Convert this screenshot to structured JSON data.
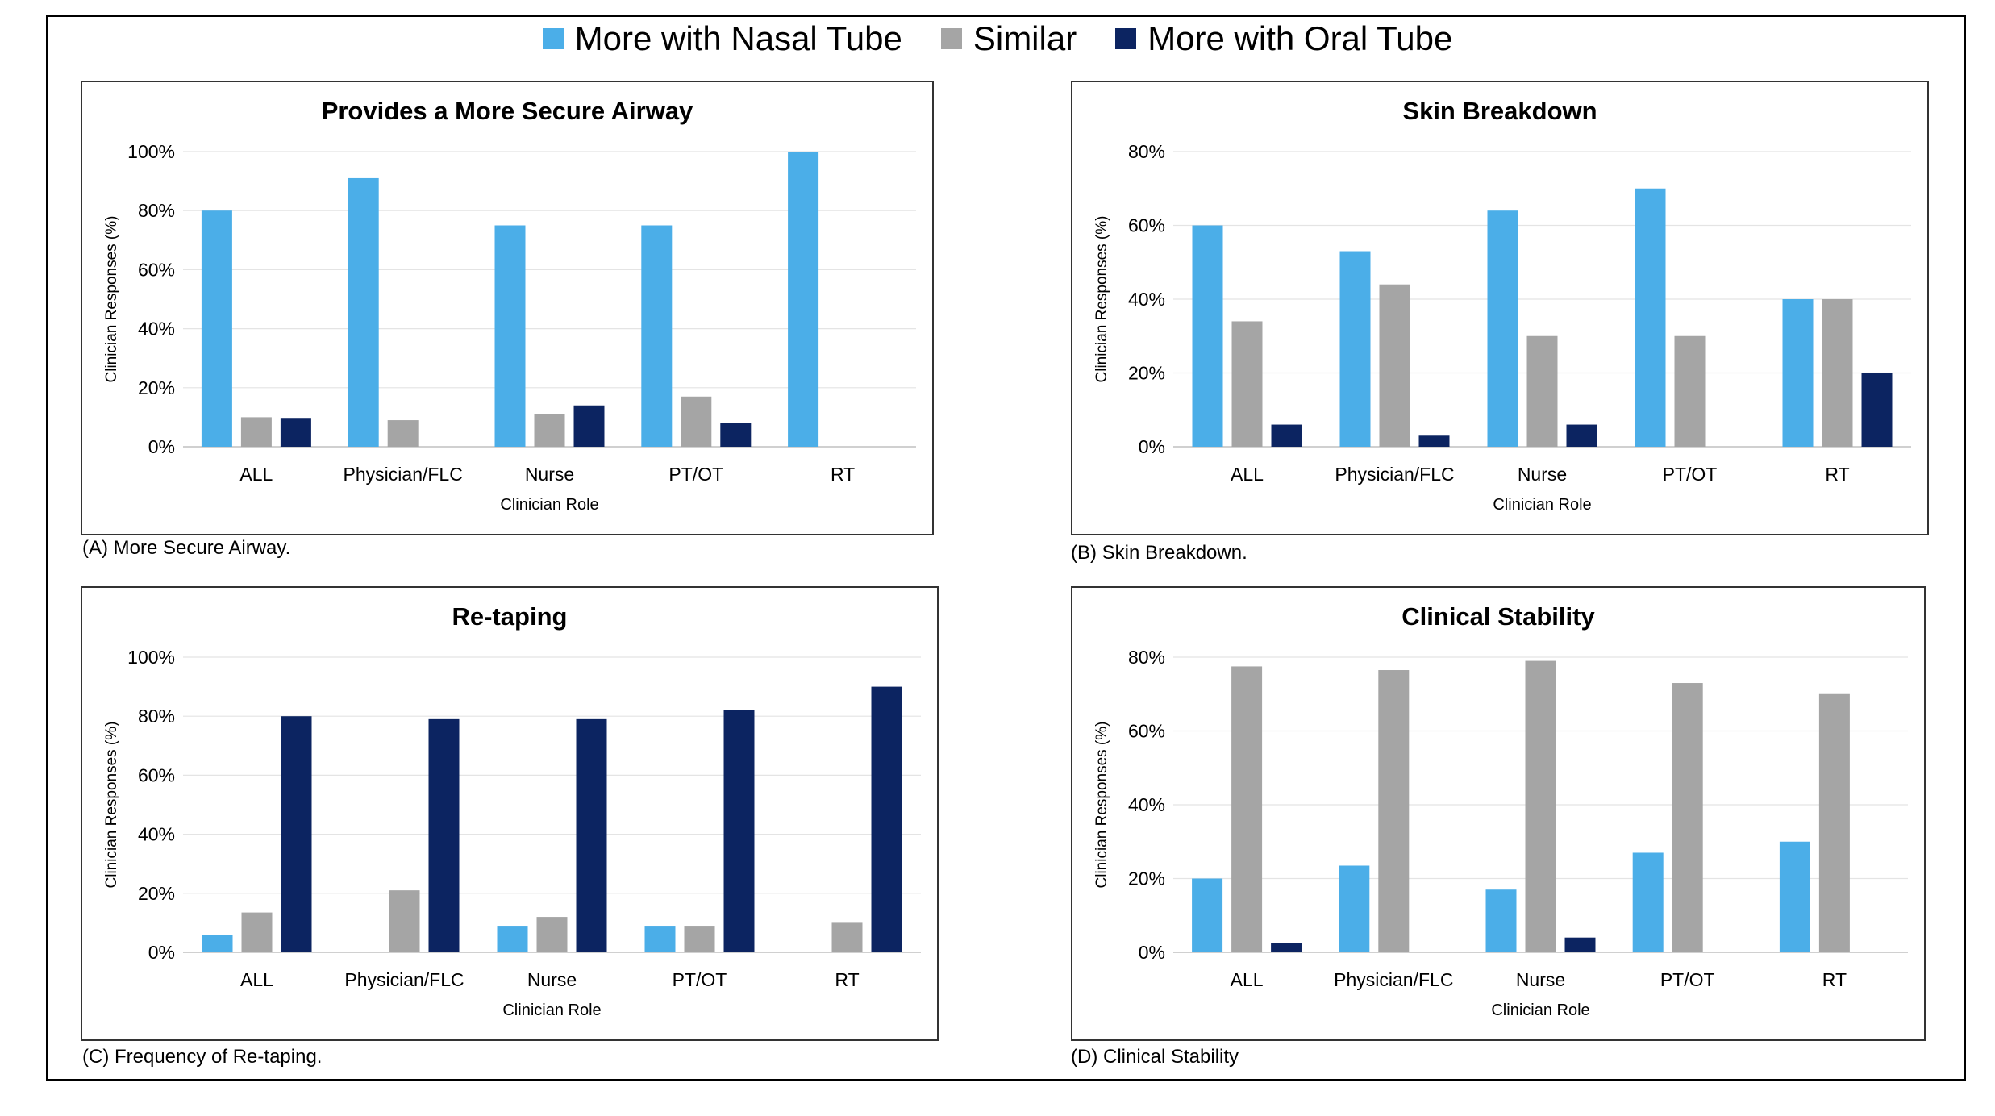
{
  "legend": {
    "items": [
      {
        "label": "More with Nasal Tube",
        "color": "#4baee8"
      },
      {
        "label": "Similar",
        "color": "#a5a5a5"
      },
      {
        "label": "More with Oral Tube",
        "color": "#0c2461"
      }
    ]
  },
  "captions": {
    "a": "(A) More Secure Airway.",
    "b": "(B) Skin Breakdown.",
    "c": "(C) Frequency of Re-taping.",
    "d": "(D) Clinical Stability"
  },
  "chart_data": [
    {
      "type": "bar",
      "title": "Provides a More Secure Airway",
      "xlabel": "Clinician Role",
      "ylabel": "Clinician Responses (%)",
      "ylim": [
        0,
        100
      ],
      "yticks": [
        "0%",
        "20%",
        "40%",
        "60%",
        "80%",
        "100%"
      ],
      "categories": [
        "ALL",
        "Physician/FLC",
        "Nurse",
        "PT/OT",
        "RT"
      ],
      "series": [
        {
          "name": "More with Nasal Tube",
          "values": [
            80,
            91,
            75,
            75,
            100
          ]
        },
        {
          "name": "Similar",
          "values": [
            10,
            9,
            11,
            17,
            0
          ]
        },
        {
          "name": "More with Oral Tube",
          "values": [
            9.5,
            0,
            14,
            8,
            0
          ]
        }
      ]
    },
    {
      "type": "bar",
      "title": "Skin Breakdown",
      "xlabel": "Clinician Role",
      "ylabel": "Clinician Responses (%)",
      "ylim": [
        0,
        80
      ],
      "yticks": [
        "0%",
        "20%",
        "40%",
        "60%",
        "80%"
      ],
      "categories": [
        "ALL",
        "Physician/FLC",
        "Nurse",
        "PT/OT",
        "RT"
      ],
      "series": [
        {
          "name": "More with Nasal Tube",
          "values": [
            60,
            53,
            64,
            70,
            40
          ]
        },
        {
          "name": "Similar",
          "values": [
            34,
            44,
            30,
            30,
            40
          ]
        },
        {
          "name": "More with Oral Tube",
          "values": [
            6,
            3,
            6,
            0,
            20
          ]
        }
      ]
    },
    {
      "type": "bar",
      "title": "Re-taping",
      "xlabel": "Clinician Role",
      "ylabel": "Clinician Responses (%)",
      "ylim": [
        0,
        100
      ],
      "yticks": [
        "0%",
        "20%",
        "40%",
        "60%",
        "80%",
        "100%"
      ],
      "categories": [
        "ALL",
        "Physician/FLC",
        "Nurse",
        "PT/OT",
        "RT"
      ],
      "series": [
        {
          "name": "More with Nasal Tube",
          "values": [
            6,
            0,
            9,
            9,
            0
          ]
        },
        {
          "name": "Similar",
          "values": [
            13.5,
            21,
            12,
            9,
            10
          ]
        },
        {
          "name": "More with Oral Tube",
          "values": [
            80,
            79,
            79,
            82,
            90
          ]
        }
      ]
    },
    {
      "type": "bar",
      "title": "Clinical Stability",
      "xlabel": "Clinician Role",
      "ylabel": "Clinician Responses (%)",
      "ylim": [
        0,
        80
      ],
      "yticks": [
        "0%",
        "20%",
        "40%",
        "60%",
        "80%"
      ],
      "categories": [
        "ALL",
        "Physician/FLC",
        "Nurse",
        "PT/OT",
        "RT"
      ],
      "series": [
        {
          "name": "More with Nasal Tube",
          "values": [
            20,
            23.5,
            17,
            27,
            30
          ]
        },
        {
          "name": "Similar",
          "values": [
            77.5,
            76.5,
            79,
            73,
            70
          ]
        },
        {
          "name": "More with Oral Tube",
          "values": [
            2.5,
            0,
            4,
            0,
            0
          ]
        }
      ]
    }
  ]
}
